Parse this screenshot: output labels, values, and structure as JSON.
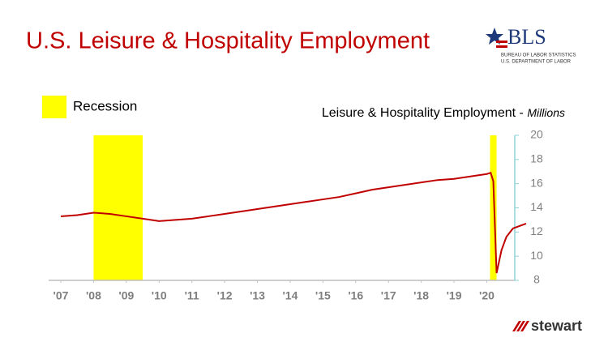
{
  "chart_data": {
    "type": "line",
    "title": "U.S. Leisure & Hospitality Employment",
    "subtitle": "Leisure & Hospitality Employment -",
    "subtitle_unit": "Millions",
    "x": [
      2007,
      2007.5,
      2008,
      2008.5,
      2009,
      2009.5,
      2010,
      2010.5,
      2011,
      2011.5,
      2012,
      2012.5,
      2013,
      2013.5,
      2014,
      2014.5,
      2015,
      2015.5,
      2016,
      2016.5,
      2017,
      2017.5,
      2018,
      2018.5,
      2019,
      2019.5,
      2020,
      2020.12,
      2020.2,
      2020.3,
      2020.45,
      2020.6,
      2020.8,
      2021.2
    ],
    "series": [
      {
        "name": "Leisure & Hospitality Employment",
        "color": "#c00000",
        "values": [
          13.3,
          13.4,
          13.6,
          13.5,
          13.3,
          13.1,
          12.9,
          13.0,
          13.1,
          13.3,
          13.5,
          13.7,
          13.9,
          14.1,
          14.3,
          14.5,
          14.7,
          14.9,
          15.2,
          15.5,
          15.7,
          15.9,
          16.1,
          16.3,
          16.4,
          16.6,
          16.8,
          16.9,
          16.2,
          8.6,
          10.5,
          11.6,
          12.3,
          12.7
        ]
      }
    ],
    "recessions": {
      "name": "Recession",
      "color": "#ffff00",
      "periods": [
        [
          2008.0,
          2009.5
        ],
        [
          2020.1,
          2020.3
        ]
      ]
    },
    "xlim": [
      2007,
      2021.3
    ],
    "xticks": [
      {
        "value": 2007,
        "label": "'07"
      },
      {
        "value": 2008,
        "label": "'08"
      },
      {
        "value": 2009,
        "label": "'09"
      },
      {
        "value": 2010,
        "label": "'10"
      },
      {
        "value": 2011,
        "label": "'11"
      },
      {
        "value": 2012,
        "label": "'12"
      },
      {
        "value": 2013,
        "label": "'13"
      },
      {
        "value": 2014,
        "label": "'14"
      },
      {
        "value": 2015,
        "label": "'15"
      },
      {
        "value": 2016,
        "label": "'16"
      },
      {
        "value": 2017,
        "label": "'17"
      },
      {
        "value": 2018,
        "label": "'18"
      },
      {
        "value": 2019,
        "label": "'19"
      },
      {
        "value": 2020,
        "label": "'20"
      }
    ],
    "ylim": [
      8,
      20
    ],
    "yticks": [
      8,
      10,
      12,
      14,
      16,
      18,
      20
    ]
  },
  "logos": {
    "bls": "BLS",
    "bls_line1": "BUREAU OF LABOR STATISTICS",
    "bls_line2": "U.S. DEPARTMENT OF LABOR",
    "company": "stewart"
  }
}
